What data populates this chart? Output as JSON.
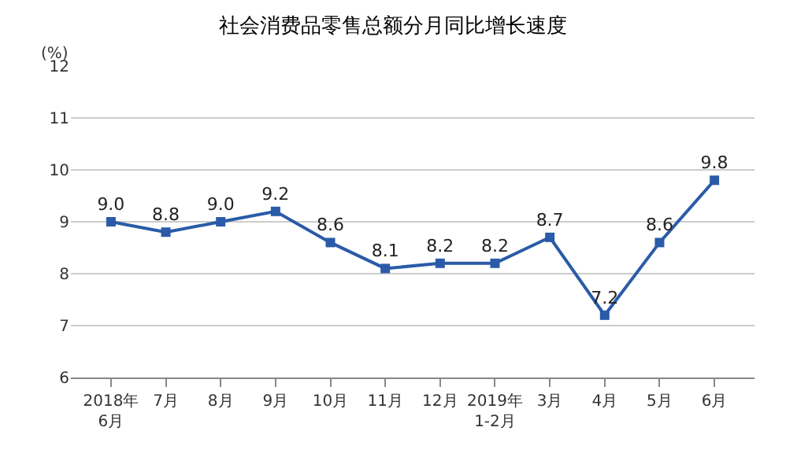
{
  "chart_data": {
    "type": "line",
    "title": "社会消费品零售总额分月同比增长速度",
    "ylabel": "(%)",
    "categories": [
      "2018年\n6月",
      "7月",
      "8月",
      "9月",
      "10月",
      "11月",
      "12月",
      "2019年\n1-2月",
      "3月",
      "4月",
      "5月",
      "6月"
    ],
    "series": [
      {
        "color": "#2a5ba8",
        "values": [
          9.0,
          8.8,
          9.0,
          9.2,
          8.6,
          8.1,
          8.2,
          8.2,
          8.7,
          7.2,
          8.6,
          9.8
        ],
        "value_labels": [
          "9.0",
          "8.8",
          "9.0",
          "9.2",
          "8.6",
          "8.1",
          "8.2",
          "8.2",
          "8.7",
          "7.2",
          "8.6",
          "9.8"
        ]
      }
    ],
    "ylim": [
      6,
      12
    ],
    "yticks": [
      6,
      7,
      8,
      9,
      10,
      11,
      12
    ],
    "grid": "y",
    "marker": "square",
    "line_style": "solid",
    "legend": false
  }
}
